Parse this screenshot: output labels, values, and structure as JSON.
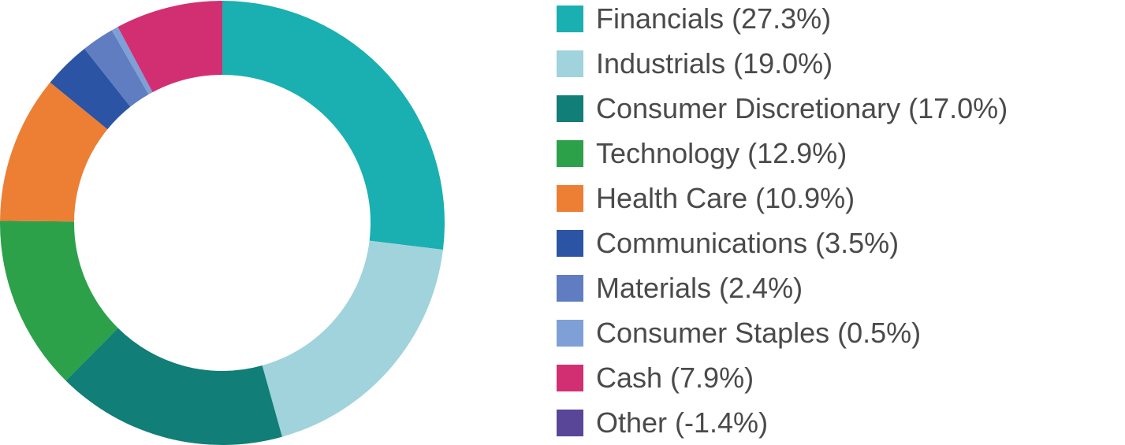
{
  "chart_data": {
    "type": "pie",
    "style": "donut",
    "categories": [
      "Financials",
      "Industrials",
      "Consumer Discretionary",
      "Technology",
      "Health Care",
      "Communications",
      "Materials",
      "Consumer Staples",
      "Cash",
      "Other"
    ],
    "values": [
      27.3,
      19.0,
      17.0,
      12.9,
      10.9,
      3.5,
      2.4,
      0.5,
      7.9,
      -1.4
    ],
    "legend_labels": [
      "Financials (27.3%)",
      "Industrials (19.0%)",
      "Consumer Discretionary (17.0%)",
      "Technology (12.9%)",
      "Health Care (10.9%)",
      "Communications (3.5%)",
      "Materials (2.4%)",
      "Consumer Staples (0.5%)",
      "Cash (7.9%)",
      "Other (-1.4%)"
    ],
    "colors": [
      "#1aafb0",
      "#a0d3dc",
      "#117e77",
      "#2ca14a",
      "#ec7f34",
      "#2b54a4",
      "#5f7dc0",
      "#7ea0d6",
      "#d22f73",
      "#5a4699"
    ],
    "legend_position": "right"
  }
}
